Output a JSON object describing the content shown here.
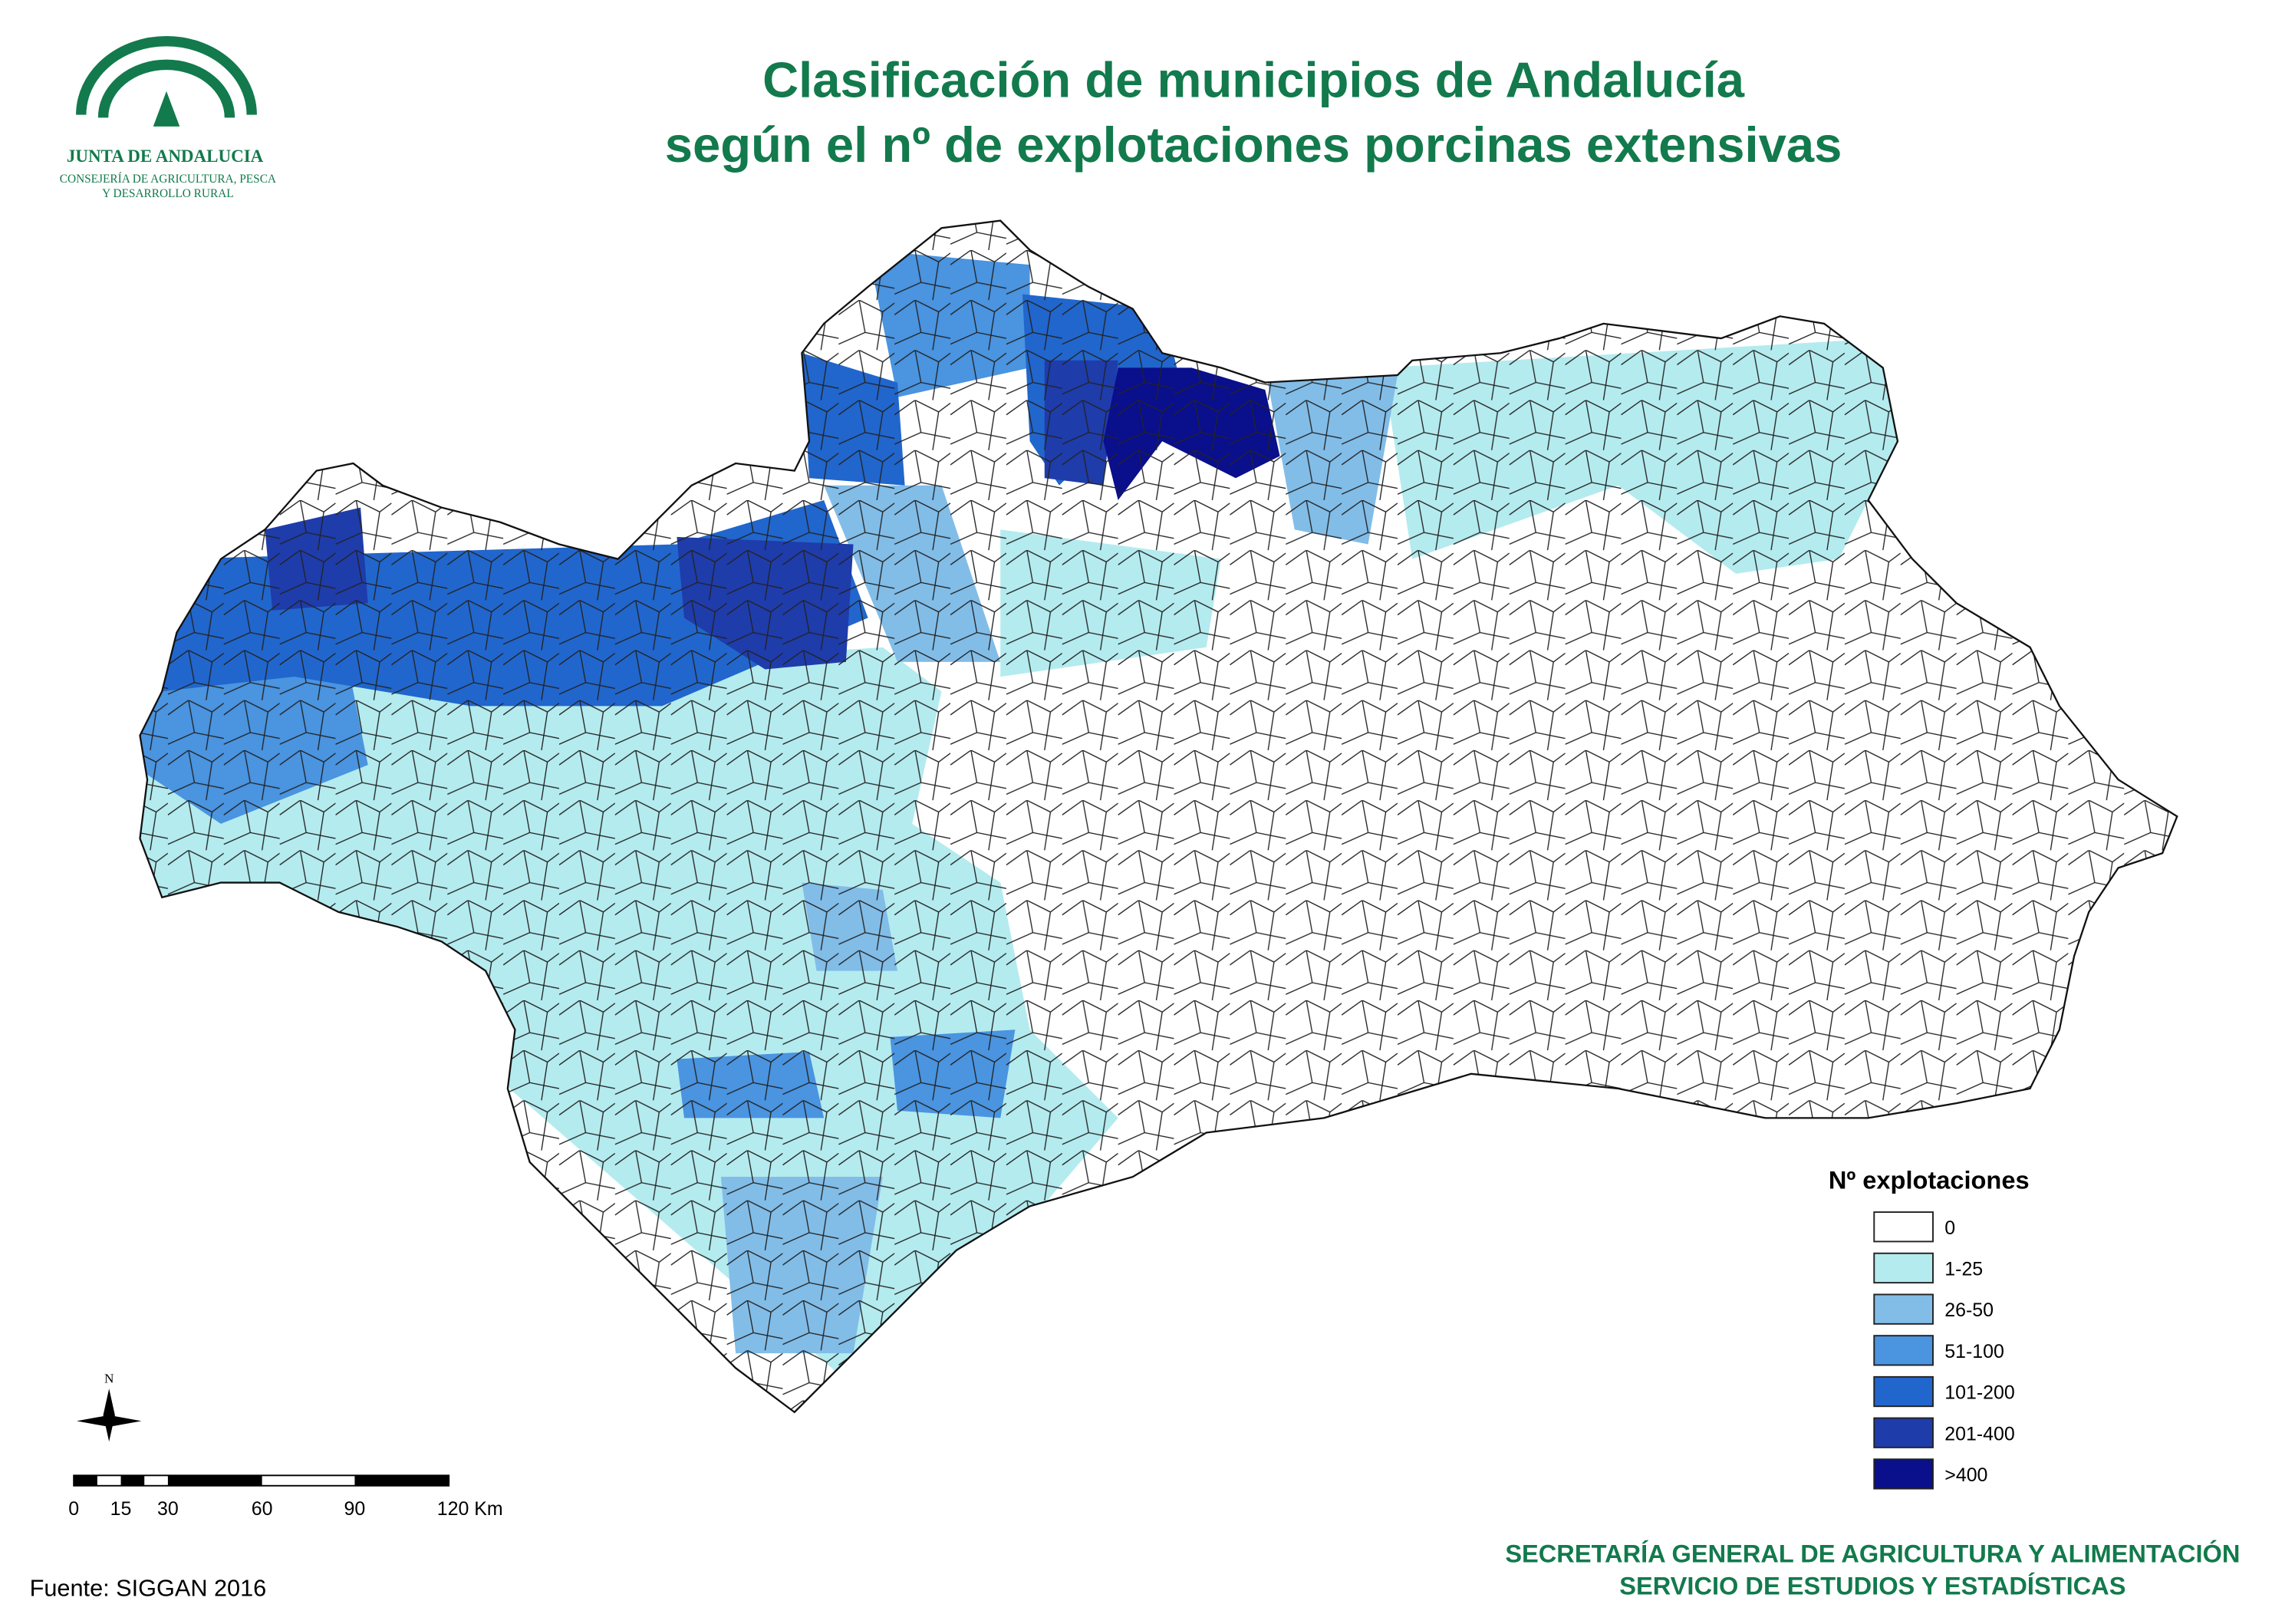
{
  "header": {
    "title_line1": "Clasificación de municipios de Andalucía",
    "title_line2": "según el nº de explotaciones porcinas extensivas"
  },
  "logo": {
    "name": "JUNTA DE ANDALUCIA",
    "dept_line1": "CONSEJERÍA DE AGRICULTURA, PESCA",
    "dept_line2": "Y DESARROLLO RURAL"
  },
  "legend": {
    "title": "Nº explotaciones",
    "items": [
      {
        "label": "0",
        "color": "#ffffff"
      },
      {
        "label": "1-25",
        "color": "#b4ebef"
      },
      {
        "label": "26-50",
        "color": "#82bde8"
      },
      {
        "label": "51-100",
        "color": "#4a94e0"
      },
      {
        "label": "101-200",
        "color": "#2166cc"
      },
      {
        "label": "201-400",
        "color": "#1f3cab"
      },
      {
        "label": ">400",
        "color": "#0a0f8c"
      }
    ]
  },
  "north": "N",
  "scale_bar": {
    "labels": [
      "0",
      "15",
      "30",
      "60",
      "90",
      "120 Km"
    ]
  },
  "source": "Fuente: SIGGAN 2016",
  "footer": {
    "line1": "SECRETARÍA GENERAL DE AGRICULTURA Y ALIMENTACIÓN",
    "line2": "SERVICIO DE ESTUDIOS Y ESTADÍSTICAS"
  }
}
